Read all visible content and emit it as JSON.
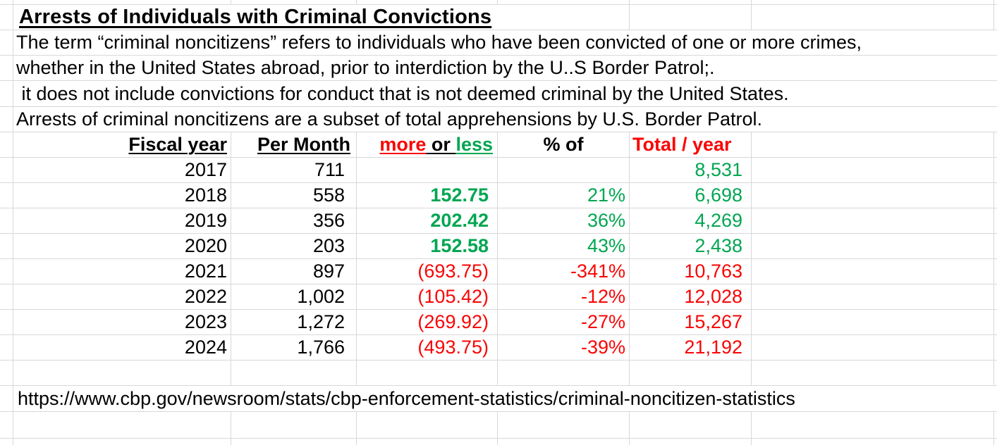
{
  "sheet": {
    "title": "Arrests of Individuals with Criminal Convictions",
    "notes": [
      "The term “criminal noncitizens” refers to individuals who have been convicted of one or more crimes,",
      "whether in the United States abroad, prior to interdiction by the U..S Border Patrol;.",
      " it does not include convictions for conduct that is not deemed criminal by the United States.",
      "Arrests of criminal noncitizens are a subset of total apprehensions by U.S. Border Patrol."
    ],
    "source_url": "https://www.cbp.gov/newsroom/stats/cbp-enforcement-statistics/criminal-noncitizen-statistics",
    "header": {
      "fiscal_year": "Fiscal year",
      "per_month": "Per Month",
      "more": "more",
      "or": " or ",
      "less": "less",
      "pct_of": "% of",
      "total_per_year": "Total / year"
    },
    "rows": [
      {
        "year": "2017",
        "per_month": "711",
        "diff": "",
        "pct": "",
        "total": "8,531",
        "trend": "green"
      },
      {
        "year": "2018",
        "per_month": "558",
        "diff": "152.75",
        "pct": "21%",
        "total": "6,698",
        "trend": "green"
      },
      {
        "year": "2019",
        "per_month": "356",
        "diff": "202.42",
        "pct": "36%",
        "total": "4,269",
        "trend": "green"
      },
      {
        "year": "2020",
        "per_month": "203",
        "diff": "152.58",
        "pct": "43%",
        "total": "2,438",
        "trend": "green"
      },
      {
        "year": "2021",
        "per_month": "897",
        "diff": "(693.75)",
        "pct": "-341%",
        "total": "10,763",
        "trend": "red"
      },
      {
        "year": "2022",
        "per_month": "1,002",
        "diff": "(105.42)",
        "pct": "-12%",
        "total": "12,028",
        "trend": "red"
      },
      {
        "year": "2023",
        "per_month": "1,272",
        "diff": "(269.92)",
        "pct": "-27%",
        "total": "15,267",
        "trend": "red"
      },
      {
        "year": "2024",
        "per_month": "1,766",
        "diff": "(493.75)",
        "pct": "-39%",
        "total": "21,192",
        "trend": "red"
      }
    ],
    "colors": {
      "green": "#00A651",
      "red": "#F90505",
      "grid": "#D8D8D8",
      "text": "#000000"
    }
  }
}
